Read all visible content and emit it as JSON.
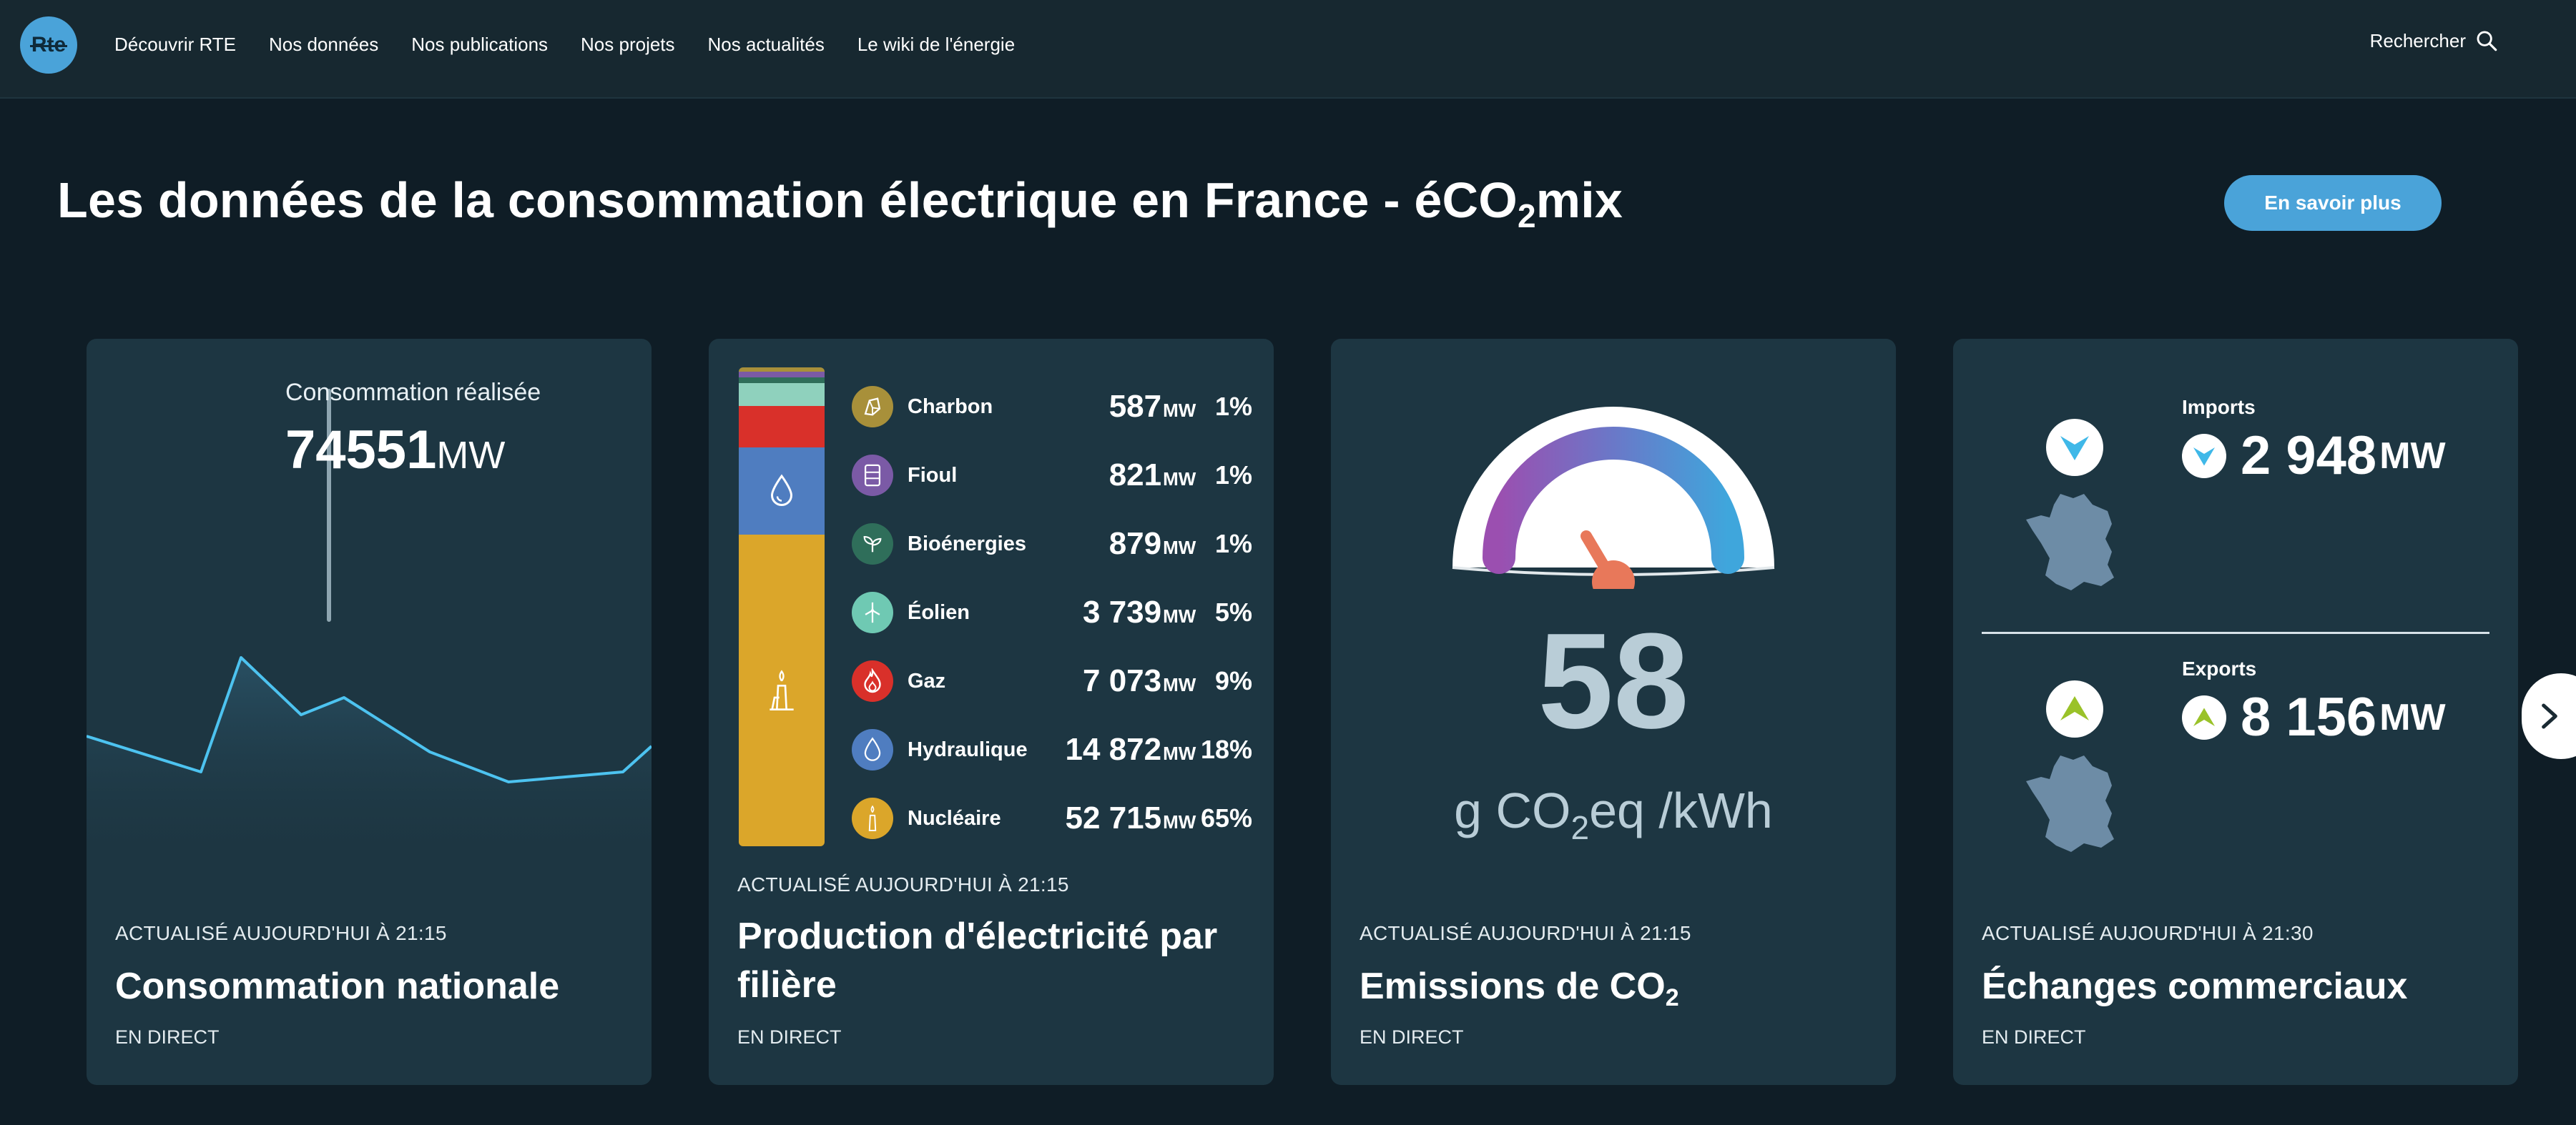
{
  "header": {
    "logo_text": "Rte",
    "nav": [
      "Découvrir RTE",
      "Nos données",
      "Nos publications",
      "Nos projets",
      "Nos actualités",
      "Le wiki de l'énergie"
    ],
    "search_label": "Rechercher"
  },
  "hero": {
    "title_main": "Les données de la consommation électrique en France - éCO",
    "title_sub": "2",
    "title_end": "mix",
    "cta": "En savoir plus"
  },
  "consumption": {
    "label": "Consommation réalisée",
    "value": "74551",
    "unit": "MW",
    "updated": "ACTUALISÉ AUJOURD'HUI À 21:15",
    "title": "Consommation nationale",
    "live": "EN DIRECT",
    "line_color": "#4dc3f0"
  },
  "production": {
    "updated": "ACTUALISÉ AUJOURD'HUI À 21:15",
    "title": "Production d'électricité par filière",
    "live": "EN DIRECT",
    "unit": "MW",
    "sources": [
      {
        "name": "Charbon",
        "mw": "587",
        "pct": "1%",
        "color": "#a8903a",
        "icon": "coal-icon"
      },
      {
        "name": "Fioul",
        "mw": "821",
        "pct": "1%",
        "color": "#7b5aa6",
        "icon": "oil-barrel-icon"
      },
      {
        "name": "Bioénergies",
        "mw": "879",
        "pct": "1%",
        "color": "#2f6e5a",
        "icon": "leaf-icon"
      },
      {
        "name": "Éolien",
        "mw": "3 739",
        "pct": "5%",
        "color": "#6fc9b3",
        "icon": "wind-turbine-icon"
      },
      {
        "name": "Gaz",
        "mw": "7 073",
        "pct": "9%",
        "color": "#d9302a",
        "icon": "flame-icon"
      },
      {
        "name": "Hydraulique",
        "mw": "14 872",
        "pct": "18%",
        "color": "#4f7dc0",
        "icon": "water-drop-icon"
      },
      {
        "name": "Nucléaire",
        "mw": "52 715",
        "pct": "65%",
        "color": "#dba62a",
        "icon": "nuclear-plant-icon"
      }
    ]
  },
  "emissions": {
    "value": "58",
    "unit_main": "g CO",
    "unit_sub": "2",
    "unit_end": "eq /kWh",
    "updated": "ACTUALISÉ AUJOURD'HUI À 21:15",
    "title_main": "Emissions de CO",
    "title_sub": "2",
    "live": "EN DIRECT",
    "needle_color": "#e8785a"
  },
  "exchanges": {
    "imports_label": "Imports",
    "imports_value": "2 948",
    "exports_label": "Exports",
    "exports_value": "8 156",
    "unit": "MW",
    "updated": "ACTUALISÉ AUJOURD'HUI À 21:30",
    "title": "Échanges commerciaux",
    "live": "EN DIRECT",
    "import_color": "#3fb8e8",
    "export_color": "#9ac229"
  }
}
